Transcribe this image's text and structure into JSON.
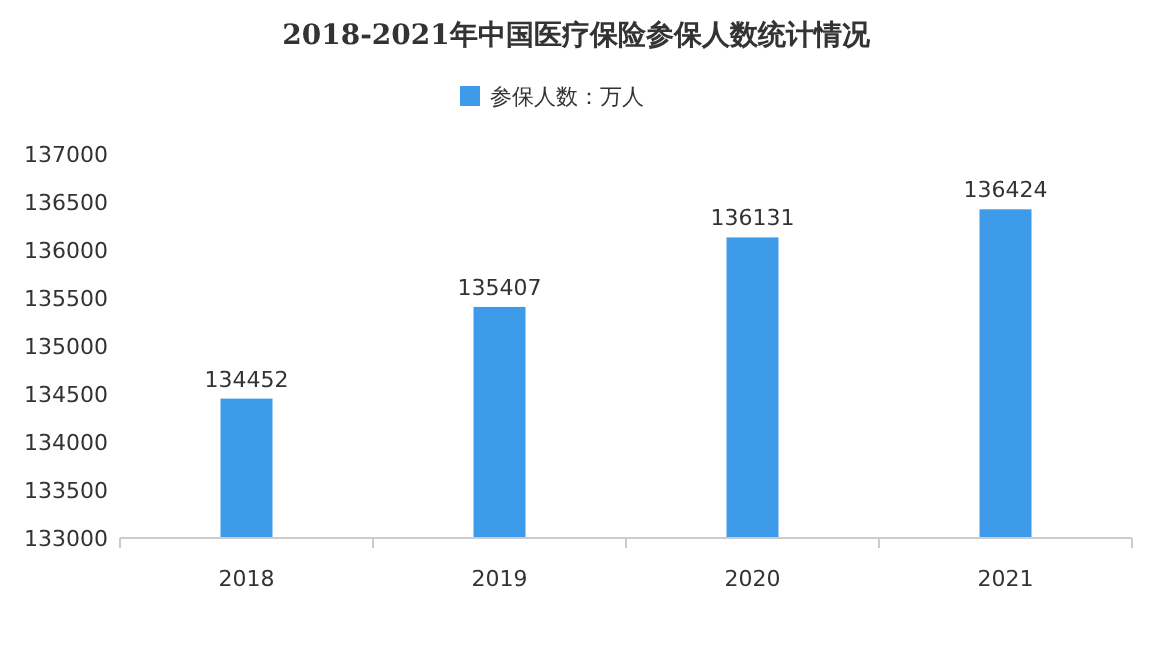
{
  "chart_data": {
    "type": "bar",
    "title": "2018-2021年中国医疗保险参保人数统计情况",
    "categories": [
      "2018",
      "2019",
      "2020",
      "2021"
    ],
    "series": [
      {
        "name": "参保人数：万人",
        "color": "#3d9be9",
        "values": [
          134452,
          135407,
          136131,
          136424
        ]
      }
    ],
    "ylim": [
      133000,
      137000
    ],
    "yticks": [
      133000,
      133500,
      134000,
      134500,
      135000,
      135500,
      136000,
      136500,
      137000
    ],
    "data_labels": true,
    "legend": "top"
  }
}
